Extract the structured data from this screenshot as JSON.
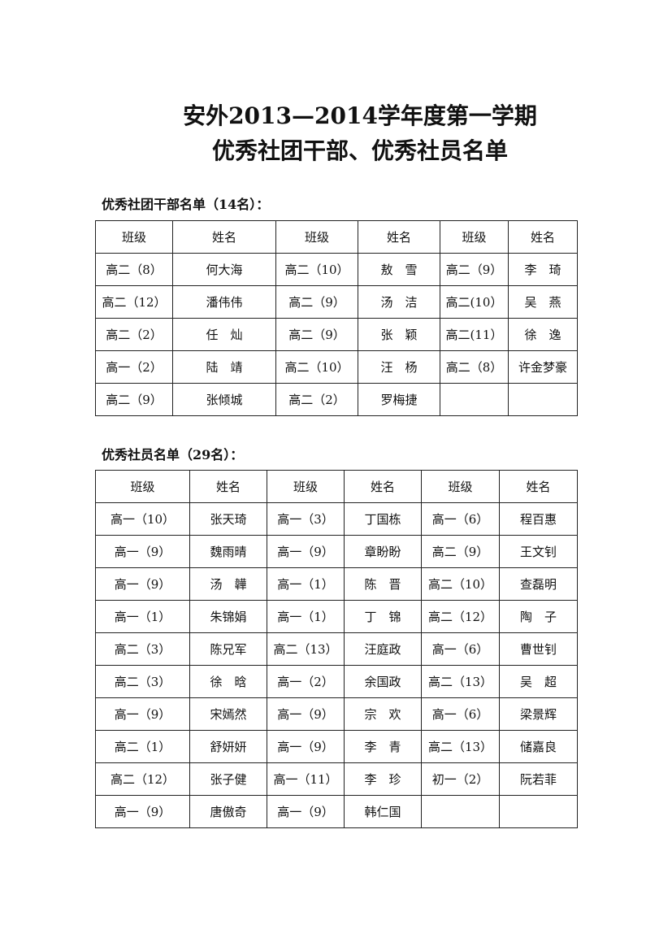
{
  "title": {
    "line1": "安外2013—2014学年度第一学期",
    "line2": "优秀社团干部、优秀社员名单"
  },
  "cadres": {
    "heading": "优秀社团干部名单（14名）：",
    "headers": [
      "班级",
      "姓名",
      "班级",
      "姓名",
      "班级",
      "姓名"
    ],
    "rows": [
      [
        "高二（8）",
        "何大海",
        "高二（10）",
        "敖　雪",
        "高二（9）",
        "李　琦"
      ],
      [
        "高二（12）",
        "潘伟伟",
        "高二（9）",
        "汤　洁",
        "高二(10）",
        "吴　燕"
      ],
      [
        "高二（2）",
        "任　灿",
        "高二（9）",
        "张　颖",
        "高二(11）",
        "徐　逸"
      ],
      [
        "高一（2）",
        "陆　靖",
        "高二（10）",
        "汪　杨",
        "高二（8）",
        "许金梦豪"
      ],
      [
        "高二（9）",
        "张倾城",
        "高二（2）",
        "罗梅捷",
        "",
        ""
      ]
    ]
  },
  "members": {
    "heading": "优秀社员名单（29名）：",
    "headers": [
      "班级",
      "姓名",
      "班级",
      "姓名",
      "班级",
      "姓名"
    ],
    "rows": [
      [
        "高一（10）",
        "张天琦",
        "高一（3）",
        "丁国栋",
        "高一（6）",
        "程百惠"
      ],
      [
        "高一（9）",
        "魏雨晴",
        "高一（9）",
        "章盼盼",
        "高二（9）",
        "王文钊"
      ],
      [
        "高一（9）",
        "汤　韡",
        "高一（1）",
        "陈　晋",
        "高二（10）",
        "查磊明"
      ],
      [
        "高一（1）",
        "朱锦娟",
        "高一（1）",
        "丁　锦",
        "高二（12）",
        "陶　子"
      ],
      [
        "高二（3）",
        "陈兄军",
        "高二（13）",
        "汪庭政",
        "高一（6）",
        "曹世钊"
      ],
      [
        "高二（3）",
        "徐　晗",
        "高一（2）",
        "余国政",
        "高二（13）",
        "吴　超"
      ],
      [
        "高一（9）",
        "宋嫣然",
        "高一（9）",
        "宗　欢",
        "高一（6）",
        "梁景辉"
      ],
      [
        "高二（1）",
        "舒妍妍",
        "高一（9）",
        "李　青",
        "高二（13）",
        "储嘉良"
      ],
      [
        "高二（12）",
        "张子健",
        "高一（11）",
        "李　珍",
        "初一（2）",
        "阮若菲"
      ],
      [
        "高一（9）",
        "唐傲奇",
        "高一（9）",
        "韩仁国",
        "",
        ""
      ]
    ]
  }
}
